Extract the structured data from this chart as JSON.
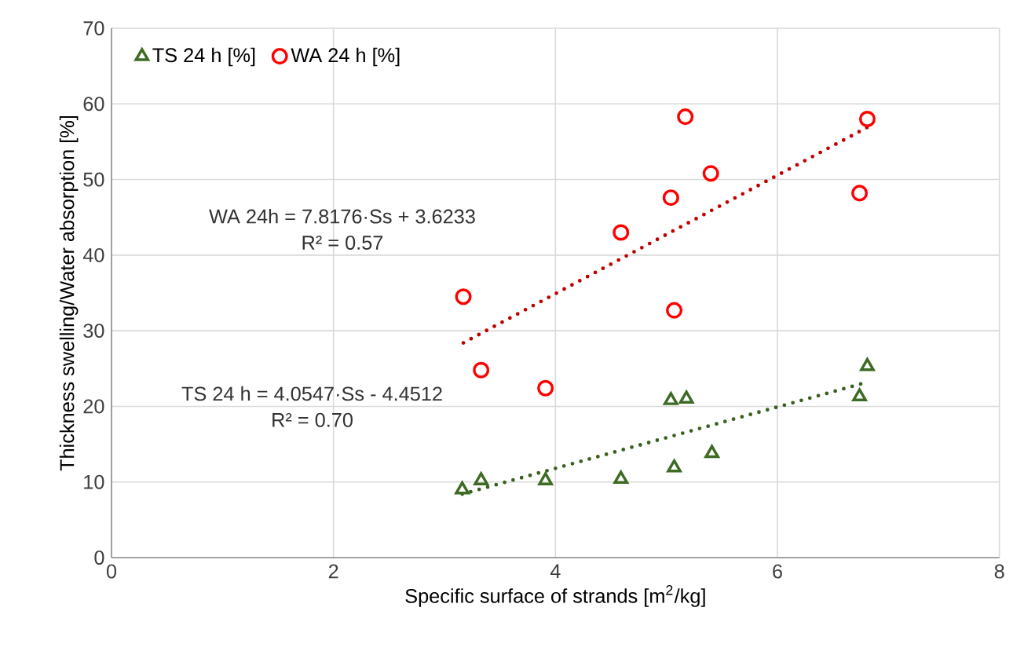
{
  "chart_data": {
    "type": "scatter",
    "xlabel": "Specific surface of strands [m$^{2}$/kg]",
    "ylabel": "Thickness swelling/Water absorption [%]",
    "xlim": [
      0,
      8
    ],
    "xticks": [
      0,
      2,
      4,
      6,
      8
    ],
    "ylim": [
      0,
      70
    ],
    "yticks": [
      0,
      10,
      20,
      30,
      40,
      50,
      60,
      70
    ],
    "grid": true,
    "legend": "top left",
    "series": [
      {
        "name": "TS 24 h [%]",
        "marker": "triangle",
        "color": "#3d6b24",
        "x": [
          3.16,
          3.33,
          3.91,
          4.59,
          5.04,
          5.18,
          5.07,
          5.41,
          6.74,
          6.81
        ],
        "values": [
          9.0,
          10.2,
          10.2,
          10.4,
          20.8,
          21.0,
          11.9,
          13.8,
          21.3,
          25.3
        ]
      },
      {
        "name": "WA 24 h [%]",
        "marker": "circle",
        "color": "#ff0000",
        "x": [
          3.17,
          3.33,
          3.91,
          4.59,
          5.04,
          5.07,
          5.17,
          5.4,
          6.74,
          6.81
        ],
        "values": [
          34.5,
          24.8,
          22.4,
          43.0,
          47.6,
          32.7,
          58.3,
          50.8,
          48.2,
          58.0
        ]
      },
      {
        "type": "line",
        "marker": "none",
        "line_style": "dotted",
        "color": "#c00000",
        "x": [
          3.17,
          6.81
        ],
        "values": [
          28.4,
          56.9
        ]
      },
      {
        "type": "line",
        "marker": "none",
        "line_style": "dotted",
        "color": "#3a6020",
        "x": [
          3.16,
          6.81
        ],
        "values": [
          8.4,
          23.2
        ]
      }
    ],
    "annotations": [
      "WA 24h = 7.8176·Ss + 3.6233",
      "R² = 0.57",
      "TS 24 h = 4.0547·Ss - 4.4512",
      "R² = 0.70"
    ]
  }
}
